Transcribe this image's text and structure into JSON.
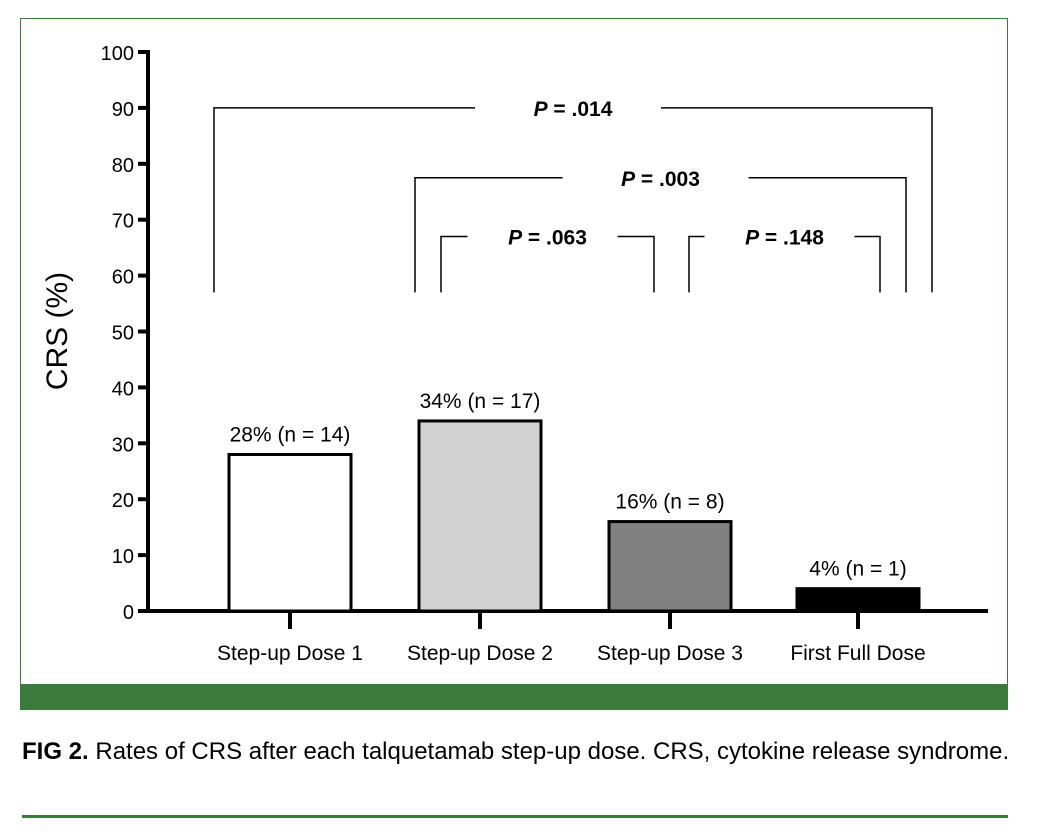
{
  "colors": {
    "accent_green": "#3a7a3a",
    "axis": "#000000"
  },
  "caption": {
    "label": "FIG 2.",
    "text": "Rates of CRS after each talquetamab step-up dose. CRS, cytokine release syndrome."
  },
  "chart_data": {
    "type": "bar",
    "title": "",
    "xlabel": "",
    "ylabel": "CRS (%)",
    "ylim": [
      0,
      100
    ],
    "yticks": [
      0,
      10,
      20,
      30,
      40,
      50,
      60,
      70,
      80,
      90,
      100
    ],
    "grid": false,
    "categories": [
      "Step-up Dose 1",
      "Step-up Dose 2",
      "Step-up Dose 3",
      "First Full Dose"
    ],
    "values": [
      28,
      34,
      16,
      4
    ],
    "data_labels": [
      "28% (n = 14)",
      "34% (n = 17)",
      "16% (n = 8)",
      "4% (n = 1)"
    ],
    "bar_colors": [
      "#ffffff",
      "#d3d3d3",
      "#808080",
      "#000000"
    ],
    "significance": [
      {
        "from": 0,
        "to": 3,
        "label_prefix": "P",
        "label_value": " = .014",
        "level": 90
      },
      {
        "from": 1,
        "to": 3,
        "label_prefix": "P",
        "label_value": " = .003",
        "level": 77.5
      },
      {
        "from": 1,
        "to": 2,
        "label_prefix": "P",
        "label_value": " = .063",
        "level": 67
      },
      {
        "from": 2,
        "to": 3,
        "label_prefix": "P",
        "label_value": " = .148",
        "level": 67
      }
    ]
  }
}
